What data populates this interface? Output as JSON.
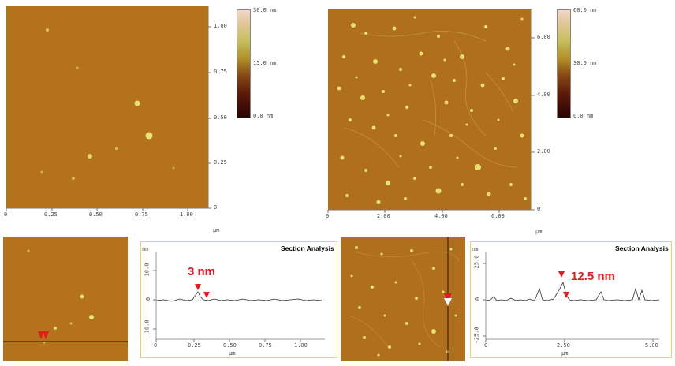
{
  "image1": {
    "x_ticks": [
      "0",
      "0.25",
      "0.50",
      "0.75",
      "1.00"
    ],
    "y_ticks": [
      "1.00",
      "0.75",
      "0.50",
      "0.25",
      "0"
    ],
    "x_unit": "µm",
    "colorbar": {
      "max": "30.0 nm",
      "mid": "15.0 nm",
      "min": "0.0 nm"
    }
  },
  "image2": {
    "x_ticks": [
      "0",
      "2.00",
      "4.00",
      "6.00"
    ],
    "y_ticks": [
      "6.00",
      "4.00",
      "2.00",
      "0"
    ],
    "x_unit": "µm",
    "colorbar": {
      "max": "60.0 nm",
      "mid": "30.0 nm",
      "min": "0.0 nm"
    }
  },
  "section1": {
    "title": "Section Analysis",
    "y_unit": "nm",
    "x_unit": "µm",
    "y_ticks": [
      "10.0",
      "0",
      "-10.0"
    ],
    "x_ticks": [
      "0",
      "0.25",
      "0.50",
      "0.75",
      "1.00"
    ],
    "annotation": "3 nm"
  },
  "section2": {
    "title": "Section Analysis",
    "y_unit": "nm",
    "x_unit": "µm",
    "y_ticks": [
      "25.0",
      "0",
      "-25.0"
    ],
    "x_ticks": [
      "0",
      "2.50",
      "5.00"
    ],
    "annotation": "12.5 nm"
  },
  "colors": {
    "afm_base": "#b4741c",
    "particle": "#e8e070",
    "marker": "#e8181c",
    "panel_border": "#e6d65a"
  }
}
